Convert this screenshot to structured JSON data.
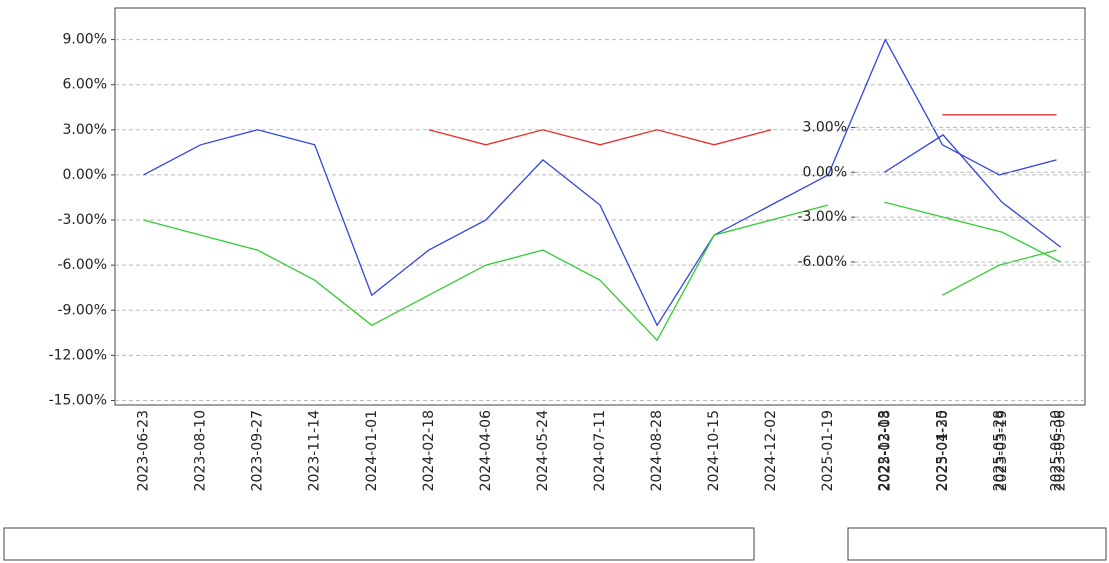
{
  "chart_data": [
    {
      "type": "line",
      "categories": [
        "2023-06-23",
        "2023-08-10",
        "2023-09-27",
        "2023-11-14",
        "2024-01-01",
        "2024-02-18",
        "2024-04-06",
        "2024-05-24",
        "2024-07-11",
        "2024-08-28",
        "2024-10-15",
        "2024-12-02",
        "2025-01-19",
        "2025-03-08",
        "2025-04-25",
        "2025-05-28",
        "2025-06-30"
      ],
      "ylim": [
        -15.3,
        11.1
      ],
      "yticks": [
        {
          "value": 9,
          "label": "9.00%"
        },
        {
          "value": 6,
          "label": "6.00%"
        },
        {
          "value": 3,
          "label": "3.00%"
        },
        {
          "value": 0,
          "label": "0.00%"
        },
        {
          "value": -3,
          "label": "-3.00%"
        },
        {
          "value": -6,
          "label": "-6.00%"
        },
        {
          "value": -9,
          "label": "-9.00%"
        },
        {
          "value": -12,
          "label": "-12.00%"
        },
        {
          "value": -15,
          "label": "-15.00%"
        }
      ],
      "grid": true,
      "series": [
        {
          "color": "#3344dd",
          "values": [
            0,
            2,
            3,
            2,
            -8,
            -5,
            -3,
            1,
            -2,
            -10,
            -4,
            -2,
            0,
            9,
            2,
            0,
            1
          ]
        },
        {
          "color": "#e53030",
          "values": [
            null,
            null,
            null,
            null,
            null,
            3,
            2,
            3,
            2,
            3,
            2,
            3,
            null,
            null,
            4,
            4,
            4
          ]
        },
        {
          "color": "#33cc33",
          "values": [
            -3,
            -4,
            -5,
            -7,
            -10,
            -8,
            -6,
            -5,
            -7,
            -11,
            -4,
            -3,
            -2,
            null,
            -8,
            -6,
            -5
          ]
        }
      ]
    },
    {
      "type": "line",
      "categories": [
        "2022-12-13",
        "2023-01-30",
        "2023-03-19",
        "2023-05-06"
      ],
      "ylim": [
        -6.2,
        4.5
      ],
      "yticks": [
        {
          "value": 3,
          "label": "3.00%"
        },
        {
          "value": 0,
          "label": "0.00%"
        },
        {
          "value": -3,
          "label": "-3.00%"
        },
        {
          "value": -6,
          "label": "-6.00%"
        }
      ],
      "grid": true,
      "series": [
        {
          "color": "#3344dd",
          "values": [
            0,
            2.5,
            -2,
            -5
          ]
        },
        {
          "color": "#33cc33",
          "values": [
            -2,
            -3,
            -4,
            -6
          ]
        }
      ]
    }
  ]
}
